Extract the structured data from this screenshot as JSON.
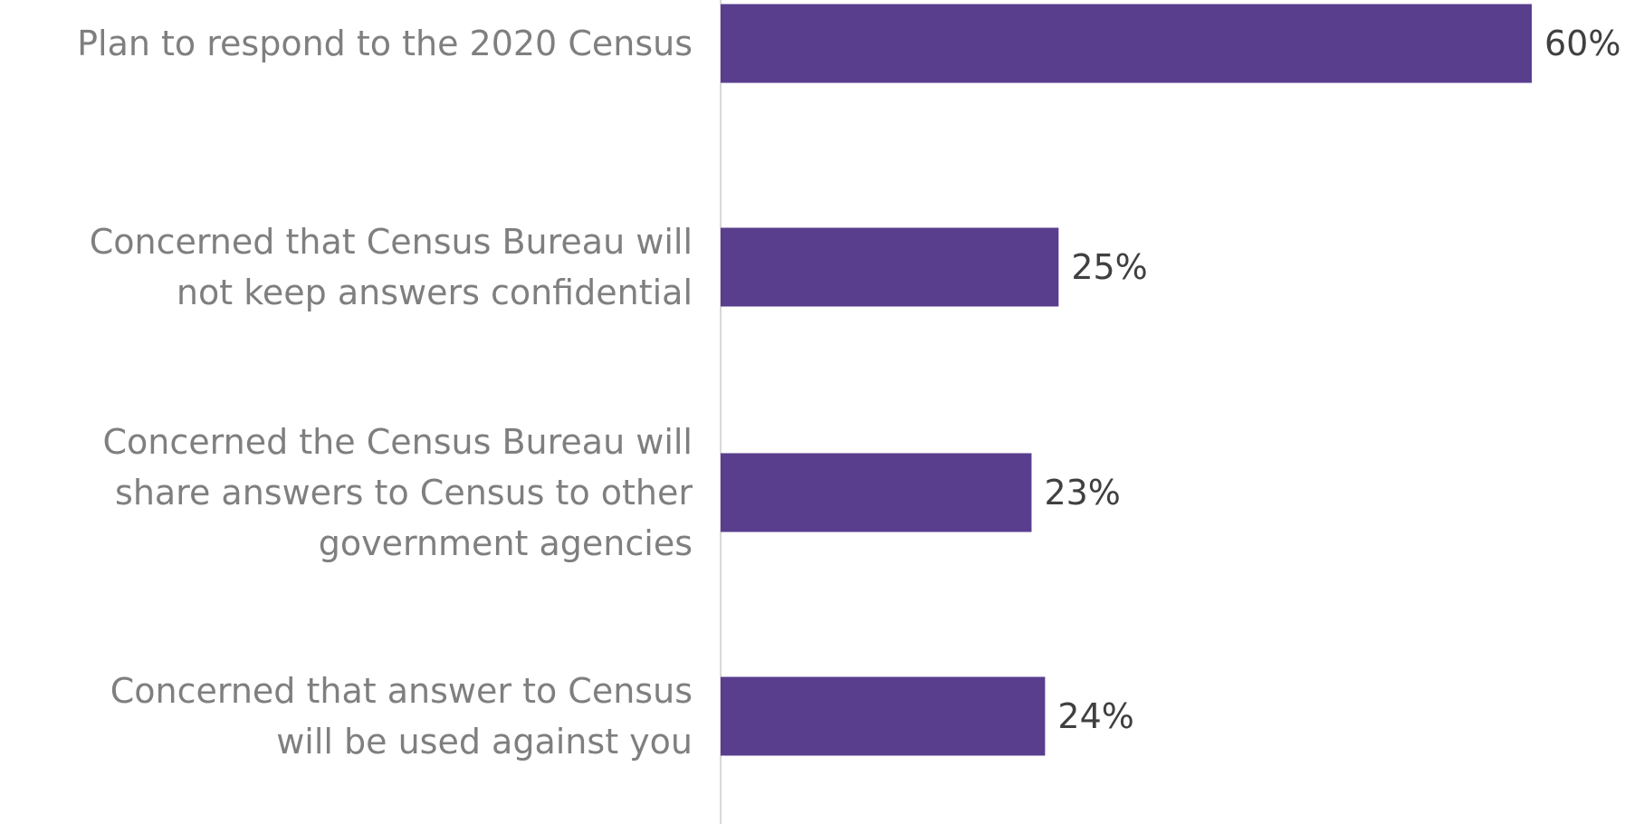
{
  "chart_data": {
    "type": "barh",
    "categories": [
      "Plan to respond to the 2020 Census",
      "Concerned that Census Bureau will\nnot keep answers confidential",
      "Concerned the Census Bureau will\nshare answers to Census to other\ngovernment agencies",
      "Concerned that answer to Census\nwill be used against you"
    ],
    "values": [
      60,
      25,
      23,
      24
    ],
    "value_labels": [
      "60%",
      "25%",
      "23%",
      "24%"
    ],
    "color": "#5a3e8e"
  }
}
